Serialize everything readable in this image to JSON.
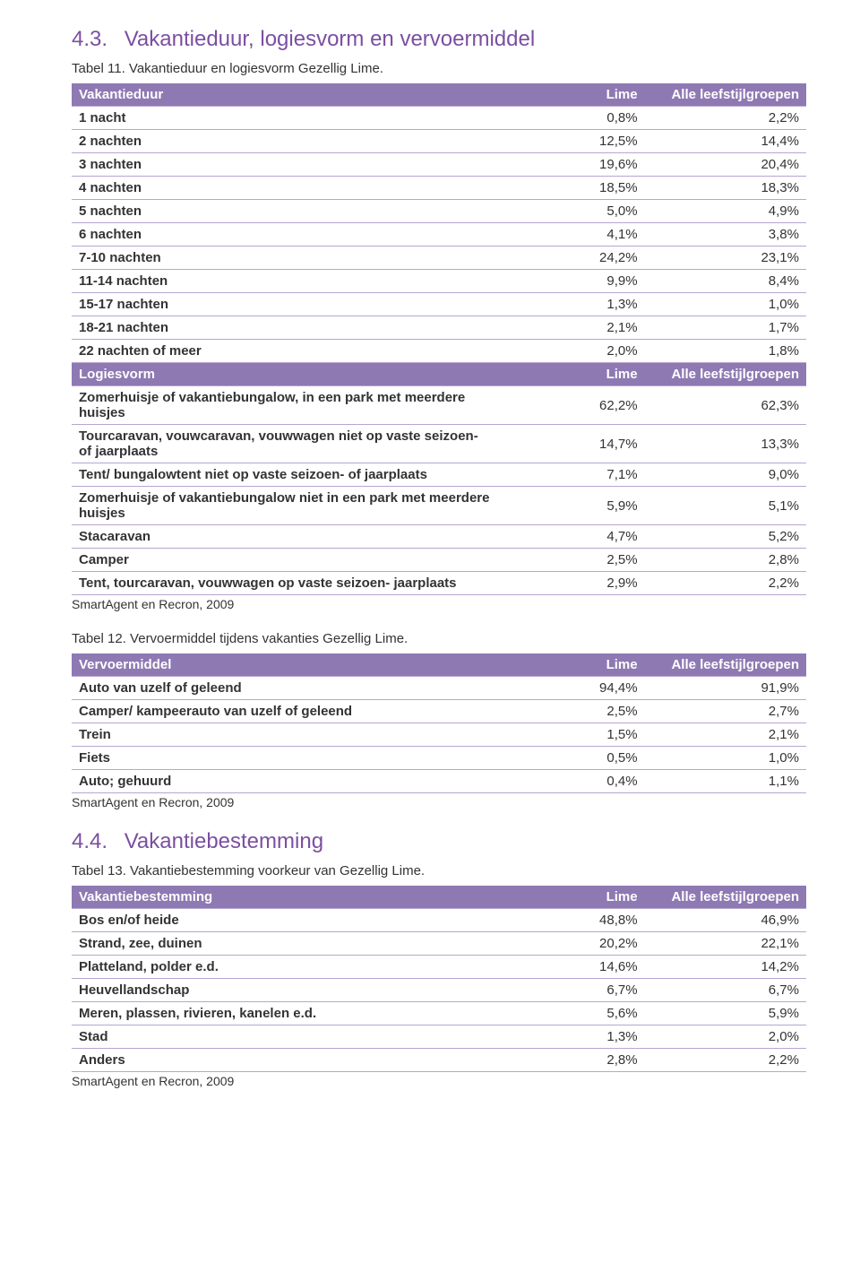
{
  "colors": {
    "heading": "#7b4fa0",
    "header_bg": "#8e79b3",
    "header_fg": "#ffffff",
    "row_border": "#b7a6d0",
    "text": "#333333",
    "page_bg": "#ffffff"
  },
  "sec43": {
    "number": "4.3.",
    "title": "Vakantieduur, logiesvorm en vervoermiddel"
  },
  "table11": {
    "caption": "Tabel 11. Vakantieduur en logiesvorm Gezellig Lime.",
    "header1": {
      "c0": "Vakantieduur",
      "c1": "Lime",
      "c2": "Alle leefstijlgroepen"
    },
    "rows1": [
      {
        "c0": "1 nacht",
        "c1": "0,8%",
        "c2": "2,2%"
      },
      {
        "c0": "2 nachten",
        "c1": "12,5%",
        "c2": "14,4%"
      },
      {
        "c0": "3 nachten",
        "c1": "19,6%",
        "c2": "20,4%"
      },
      {
        "c0": "4 nachten",
        "c1": "18,5%",
        "c2": "18,3%"
      },
      {
        "c0": "5 nachten",
        "c1": "5,0%",
        "c2": "4,9%"
      },
      {
        "c0": "6 nachten",
        "c1": "4,1%",
        "c2": "3,8%"
      },
      {
        "c0": "7-10 nachten",
        "c1": "24,2%",
        "c2": "23,1%"
      },
      {
        "c0": "11-14 nachten",
        "c1": "9,9%",
        "c2": "8,4%"
      },
      {
        "c0": "15-17 nachten",
        "c1": "1,3%",
        "c2": "1,0%"
      },
      {
        "c0": "18-21 nachten",
        "c1": "2,1%",
        "c2": "1,7%"
      },
      {
        "c0": "22 nachten of meer",
        "c1": "2,0%",
        "c2": "1,8%"
      }
    ],
    "header2": {
      "c0": "Logiesvorm",
      "c1": "Lime",
      "c2": "Alle leefstijlgroepen"
    },
    "rows2": [
      {
        "c0": "Zomerhuisje of vakantiebungalow, in een park met meerdere huisjes",
        "c1": "62,2%",
        "c2": "62,3%"
      },
      {
        "c0": "Tourcaravan, vouwcaravan, vouwwagen niet op vaste seizoen- of jaarplaats",
        "c1": "14,7%",
        "c2": "13,3%"
      },
      {
        "c0": "Tent/ bungalowtent niet op vaste seizoen- of jaarplaats",
        "c1": "7,1%",
        "c2": "9,0%"
      },
      {
        "c0": "Zomerhuisje of vakantiebungalow niet in een park met meerdere huisjes",
        "c1": "5,9%",
        "c2": "5,1%"
      },
      {
        "c0": "Stacaravan",
        "c1": "4,7%",
        "c2": "5,2%"
      },
      {
        "c0": "Camper",
        "c1": "2,5%",
        "c2": "2,8%"
      },
      {
        "c0": "Tent, tourcaravan, vouwwagen op vaste seizoen- jaarplaats",
        "c1": "2,9%",
        "c2": "2,2%"
      }
    ],
    "source": "SmartAgent en Recron, 2009"
  },
  "table12": {
    "caption": "Tabel 12. Vervoermiddel tijdens vakanties Gezellig Lime.",
    "header": {
      "c0": "Vervoermiddel",
      "c1": "Lime",
      "c2": "Alle leefstijlgroepen"
    },
    "rows": [
      {
        "c0": "Auto van uzelf of geleend",
        "c1": "94,4%",
        "c2": "91,9%"
      },
      {
        "c0": "Camper/ kampeerauto van uzelf of geleend",
        "c1": "2,5%",
        "c2": "2,7%"
      },
      {
        "c0": "Trein",
        "c1": "1,5%",
        "c2": "2,1%"
      },
      {
        "c0": "Fiets",
        "c1": "0,5%",
        "c2": "1,0%"
      },
      {
        "c0": "Auto; gehuurd",
        "c1": "0,4%",
        "c2": "1,1%"
      }
    ],
    "source": "SmartAgent en Recron, 2009"
  },
  "sec44": {
    "number": "4.4.",
    "title": "Vakantiebestemming"
  },
  "table13": {
    "caption": "Tabel 13. Vakantiebestemming voorkeur van Gezellig Lime.",
    "header": {
      "c0": "Vakantiebestemming",
      "c1": "Lime",
      "c2": "Alle leefstijlgroepen"
    },
    "rows": [
      {
        "c0": "Bos en/of heide",
        "c1": "48,8%",
        "c2": "46,9%"
      },
      {
        "c0": "Strand, zee, duinen",
        "c1": "20,2%",
        "c2": "22,1%"
      },
      {
        "c0": "Platteland, polder e.d.",
        "c1": "14,6%",
        "c2": "14,2%"
      },
      {
        "c0": "Heuvellandschap",
        "c1": "6,7%",
        "c2": "6,7%"
      },
      {
        "c0": "Meren, plassen, rivieren, kanelen e.d.",
        "c1": "5,6%",
        "c2": "5,9%"
      },
      {
        "c0": "Stad",
        "c1": "1,3%",
        "c2": "2,0%"
      },
      {
        "c0": "Anders",
        "c1": "2,8%",
        "c2": "2,2%"
      }
    ],
    "source": "SmartAgent en Recron, 2009"
  }
}
